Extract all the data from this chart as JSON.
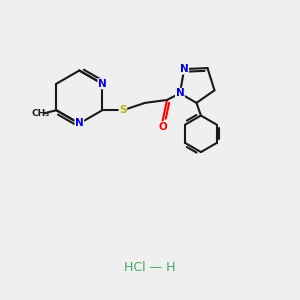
{
  "background_color": "#efefef",
  "bond_color": "#1a1a1a",
  "bond_width": 1.5,
  "atom_colors": {
    "N": "#0000ee",
    "S": "#b8b800",
    "O": "#ff0000",
    "C": "#1a1a1a"
  },
  "hcl_text": "HCl — H",
  "hcl_color": "#44aa66",
  "hcl_fontsize": 9
}
